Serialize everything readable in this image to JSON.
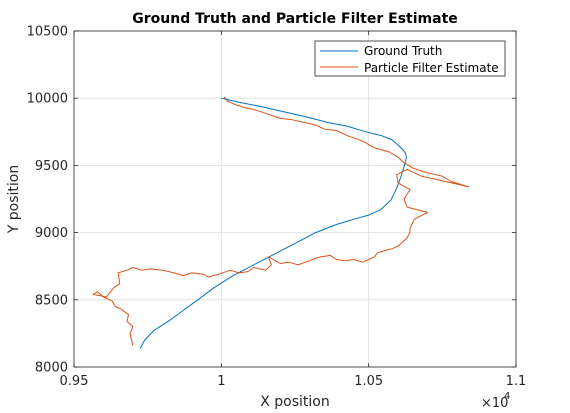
{
  "chart_data": {
    "type": "line",
    "title": "Ground Truth and Particle Filter Estimate",
    "xlabel": "X position",
    "ylabel": "Y position",
    "xlim": [
      9500,
      11000
    ],
    "ylim": [
      8000,
      10500
    ],
    "x_exponent_label": "×10",
    "x_exponent_power": "4",
    "xticks": [
      9500,
      10000,
      10500,
      11000
    ],
    "xtick_labels": [
      "0.95",
      "1",
      "1.05",
      "1.1"
    ],
    "yticks": [
      8000,
      8500,
      9000,
      9500,
      10000,
      10500
    ],
    "ytick_labels": [
      "8000",
      "8500",
      "9000",
      "9500",
      "10000",
      "10500"
    ],
    "grid": true,
    "legend_location": "top-right",
    "series": [
      {
        "name": "Ground Truth",
        "color": "#0072BD",
        "x": [
          9725,
          9740,
          9770,
          9820,
          9870,
          9920,
          9975,
          10040,
          10110,
          10180,
          10250,
          10320,
          10390,
          10450,
          10500,
          10540,
          10575,
          10595,
          10610,
          10620,
          10625,
          10628,
          10625,
          10615,
          10600,
          10580,
          10545,
          10490,
          10430,
          10360,
          10290,
          10210,
          10130,
          10060,
          10010,
          10000
        ],
        "y": [
          8140,
          8200,
          8270,
          8340,
          8420,
          8500,
          8590,
          8680,
          8760,
          8840,
          8920,
          9000,
          9060,
          9100,
          9130,
          9170,
          9240,
          9330,
          9420,
          9490,
          9530,
          9560,
          9590,
          9620,
          9650,
          9690,
          9720,
          9750,
          9790,
          9820,
          9860,
          9900,
          9940,
          9970,
          9995,
          10000
        ]
      },
      {
        "name": "Particle Filter Estimate",
        "color": "#D95319",
        "x": [
          9700,
          9695,
          9690,
          9700,
          9680,
          9685,
          9660,
          9640,
          9630,
          9600,
          9580,
          9565,
          9590,
          9610,
          9635,
          9655,
          9650,
          9680,
          9700,
          9730,
          9760,
          9800,
          9840,
          9870,
          9900,
          9940,
          9955,
          9990,
          10030,
          10060,
          10090,
          10110,
          10150,
          10170,
          10160,
          10200,
          10230,
          10260,
          10300,
          10320,
          10340,
          10370,
          10390,
          10420,
          10450,
          10480,
          10500,
          10520,
          10530,
          10560,
          10580,
          10600,
          10610,
          10630,
          10640,
          10640,
          10655,
          10700,
          10630,
          10620,
          10640,
          10600,
          10595,
          10620,
          10630,
          10680,
          10720,
          10760,
          10800,
          10840,
          10780,
          10750,
          10690,
          10650,
          10620,
          10600,
          10570,
          10520,
          10480,
          10430,
          10390,
          10350,
          10320,
          10280,
          10240,
          10200,
          10160,
          10120,
          10080,
          10050,
          10020,
          10010
        ],
        "y": [
          8160,
          8200,
          8250,
          8300,
          8340,
          8390,
          8430,
          8450,
          8490,
          8520,
          8560,
          8540,
          8530,
          8520,
          8590,
          8620,
          8700,
          8720,
          8740,
          8720,
          8730,
          8720,
          8700,
          8680,
          8700,
          8690,
          8670,
          8690,
          8720,
          8700,
          8710,
          8740,
          8720,
          8760,
          8820,
          8770,
          8780,
          8760,
          8790,
          8810,
          8820,
          8830,
          8800,
          8790,
          8800,
          8780,
          8800,
          8820,
          8850,
          8870,
          8880,
          8900,
          8920,
          8960,
          9000,
          9030,
          9100,
          9150,
          9190,
          9250,
          9320,
          9370,
          9430,
          9460,
          9470,
          9420,
          9400,
          9380,
          9360,
          9340,
          9380,
          9420,
          9450,
          9480,
          9520,
          9560,
          9600,
          9630,
          9680,
          9720,
          9760,
          9770,
          9800,
          9820,
          9840,
          9850,
          9880,
          9910,
          9930,
          9950,
          9980,
          10010
        ]
      }
    ]
  }
}
